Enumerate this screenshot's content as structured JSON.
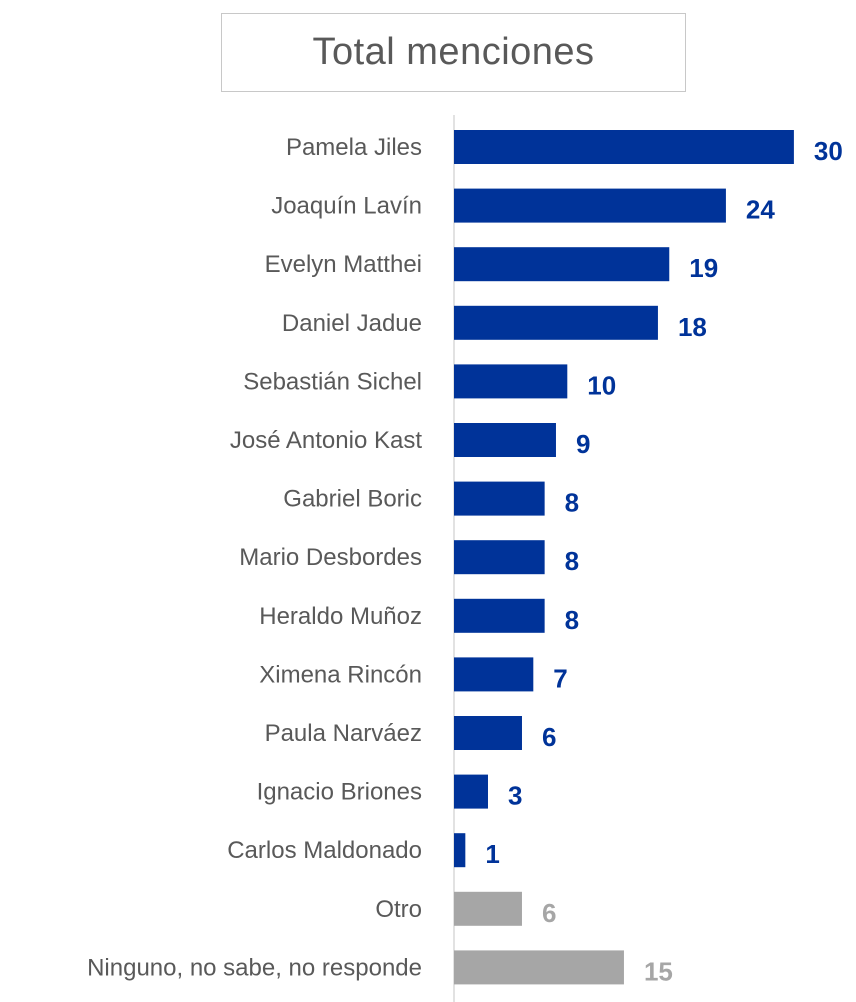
{
  "chart_data": {
    "type": "bar",
    "orientation": "horizontal",
    "title": "Total menciones",
    "categories": [
      "Pamela Jiles",
      "Joaquín Lavín",
      "Evelyn Matthei",
      "Daniel Jadue",
      "Sebastián Sichel",
      "José Antonio Kast",
      "Gabriel Boric",
      "Mario Desbordes",
      "Heraldo Muñoz",
      "Ximena Rincón",
      "Paula Narváez",
      "Ignacio Briones",
      "Carlos Maldonado",
      "Otro",
      "Ninguno, no sabe, no responde"
    ],
    "values": [
      30,
      24,
      19,
      18,
      10,
      9,
      8,
      8,
      8,
      7,
      6,
      3,
      1,
      6,
      15
    ],
    "colors": [
      "#003399",
      "#003399",
      "#003399",
      "#003399",
      "#003399",
      "#003399",
      "#003399",
      "#003399",
      "#003399",
      "#003399",
      "#003399",
      "#003399",
      "#003399",
      "#a6a6a6",
      "#a6a6a6"
    ],
    "data_labels": true,
    "xlabel": "",
    "ylabel": "",
    "grid": false,
    "legend": "none"
  }
}
